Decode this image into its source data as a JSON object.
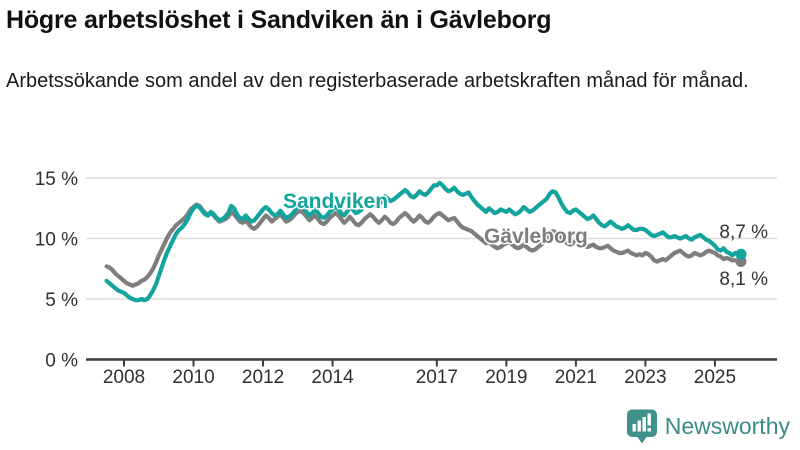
{
  "header": {
    "title": "Högre arbetslöshet i Sandviken än i Gävleborg",
    "subtitle": "Arbetssökande som andel av den registerbaserade arbetskraften månad för månad."
  },
  "branding": {
    "name": "Newsworthy",
    "logo_color": "#3f918a",
    "wordmark_color": "#3a8c86"
  },
  "chart_data": {
    "type": "line",
    "title": "Högre arbetslöshet i Sandviken än i Gävleborg",
    "subtitle": "Arbetssökande som andel av den registerbaserade arbetskraften månad för månad.",
    "unit": "%",
    "frequency": "monthly",
    "x_start": {
      "year": 2007,
      "month": 7
    },
    "x_end": {
      "year": 2025,
      "month": 10
    },
    "ylim": [
      0,
      16
    ],
    "yticks": [
      0,
      5,
      10,
      15
    ],
    "ytick_suffix": " %",
    "xticks": [
      2008,
      2010,
      2012,
      2014,
      2017,
      2019,
      2021,
      2023,
      2025
    ],
    "grid": true,
    "legend_position": "inline-labels",
    "series": [
      {
        "name": "Gävleborg",
        "color": "#7e7e7e",
        "end_label": "8,1 %",
        "end_value": 8.1,
        "label_pos": {
          "x": 484,
          "y": 243
        },
        "end_label_pos": {
          "x": 768,
          "y": 285
        },
        "values": [
          7.7,
          7.6,
          7.4,
          7.1,
          6.9,
          6.7,
          6.5,
          6.3,
          6.2,
          6.1,
          6.2,
          6.3,
          6.5,
          6.6,
          6.8,
          7.1,
          7.5,
          8.0,
          8.6,
          9.1,
          9.6,
          10.1,
          10.5,
          10.8,
          11.1,
          11.3,
          11.5,
          11.7,
          12.0,
          12.4,
          12.6,
          12.8,
          12.7,
          12.4,
          12.1,
          12.0,
          12.1,
          11.9,
          11.6,
          11.4,
          11.5,
          11.6,
          11.8,
          12.2,
          12.0,
          11.7,
          11.4,
          11.3,
          11.5,
          11.2,
          10.9,
          10.8,
          11.0,
          11.3,
          11.6,
          11.9,
          11.7,
          11.4,
          11.6,
          11.8,
          12.0,
          11.7,
          11.4,
          11.5,
          11.7,
          12.0,
          12.2,
          12.3,
          12.1,
          11.8,
          11.5,
          11.7,
          11.9,
          11.6,
          11.3,
          11.2,
          11.4,
          11.7,
          11.9,
          12.1,
          11.9,
          11.6,
          11.3,
          11.5,
          11.8,
          11.5,
          11.2,
          11.1,
          11.3,
          11.6,
          11.8,
          12.0,
          11.8,
          11.5,
          11.3,
          11.5,
          11.8,
          11.6,
          11.3,
          11.2,
          11.4,
          11.7,
          11.9,
          12.1,
          11.9,
          11.6,
          11.4,
          11.6,
          11.9,
          11.7,
          11.4,
          11.3,
          11.5,
          11.8,
          12.0,
          12.1,
          11.9,
          11.7,
          11.5,
          11.6,
          11.7,
          11.4,
          11.1,
          10.9,
          10.8,
          10.7,
          10.6,
          10.4,
          10.2,
          10.0,
          9.8,
          9.6,
          9.7,
          9.5,
          9.3,
          9.2,
          9.3,
          9.5,
          9.6,
          9.7,
          9.5,
          9.3,
          9.2,
          9.3,
          9.5,
          9.3,
          9.1,
          9.0,
          9.1,
          9.3,
          9.5,
          9.7,
          10.0,
          10.4,
          10.6,
          10.5,
          10.3,
          10.0,
          9.8,
          9.6,
          9.5,
          9.6,
          9.8,
          9.7,
          9.5,
          9.4,
          9.3,
          9.4,
          9.5,
          9.3,
          9.2,
          9.2,
          9.3,
          9.4,
          9.2,
          9.0,
          8.9,
          8.8,
          8.8,
          8.9,
          9.0,
          8.8,
          8.7,
          8.6,
          8.7,
          8.6,
          8.8,
          8.7,
          8.5,
          8.2,
          8.1,
          8.2,
          8.3,
          8.2,
          8.4,
          8.6,
          8.8,
          8.9,
          9.0,
          8.8,
          8.6,
          8.5,
          8.6,
          8.8,
          8.7,
          8.6,
          8.7,
          8.9,
          9.0,
          8.9,
          8.8,
          8.6,
          8.5,
          8.3,
          8.4,
          8.3,
          8.2,
          8.2,
          8.1,
          8.1
        ]
      },
      {
        "name": "Sandviken",
        "color": "#12a49d",
        "end_label": "8,7 %",
        "end_value": 8.7,
        "label_pos": {
          "x": 283,
          "y": 208
        },
        "end_label_pos": {
          "x": 768,
          "y": 238
        },
        "values": [
          6.5,
          6.3,
          6.1,
          5.9,
          5.7,
          5.6,
          5.5,
          5.3,
          5.1,
          5.0,
          4.9,
          4.9,
          5.0,
          4.9,
          5.0,
          5.3,
          5.7,
          6.2,
          6.9,
          7.6,
          8.3,
          8.9,
          9.4,
          9.9,
          10.4,
          10.7,
          10.9,
          11.2,
          11.6,
          12.1,
          12.5,
          12.7,
          12.6,
          12.3,
          12.0,
          11.9,
          12.2,
          12.0,
          11.7,
          11.5,
          11.6,
          11.8,
          12.1,
          12.7,
          12.5,
          12.0,
          11.7,
          11.6,
          11.9,
          11.6,
          11.4,
          11.5,
          11.8,
          12.1,
          12.4,
          12.6,
          12.4,
          12.1,
          11.9,
          12.0,
          12.3,
          12.0,
          11.7,
          11.8,
          12.0,
          12.3,
          12.6,
          12.7,
          12.5,
          12.2,
          11.9,
          12.1,
          12.4,
          12.1,
          11.8,
          11.7,
          11.9,
          12.2,
          12.4,
          12.6,
          12.4,
          12.1,
          11.9,
          12.2,
          12.6,
          12.4,
          12.1,
          12.2,
          12.4,
          12.7,
          12.9,
          13.1,
          12.9,
          12.7,
          12.8,
          13.1,
          13.5,
          13.3,
          13.1,
          13.2,
          13.4,
          13.6,
          13.8,
          14.0,
          13.8,
          13.5,
          13.4,
          13.6,
          13.9,
          13.7,
          13.6,
          13.8,
          14.1,
          14.4,
          14.4,
          14.6,
          14.4,
          14.1,
          13.9,
          14.0,
          14.2,
          13.9,
          13.7,
          13.6,
          13.7,
          13.8,
          13.4,
          13.1,
          12.8,
          12.6,
          12.4,
          12.2,
          12.5,
          12.3,
          12.1,
          12.2,
          12.4,
          12.3,
          12.2,
          12.4,
          12.2,
          12.0,
          12.1,
          12.3,
          12.6,
          12.4,
          12.2,
          12.3,
          12.5,
          12.7,
          12.9,
          13.1,
          13.3,
          13.7,
          13.9,
          13.8,
          13.4,
          12.9,
          12.5,
          12.2,
          12.1,
          12.3,
          12.4,
          12.2,
          12.0,
          11.8,
          11.6,
          11.7,
          11.9,
          11.6,
          11.3,
          11.1,
          11.0,
          11.2,
          11.4,
          11.2,
          11.0,
          10.9,
          10.8,
          10.9,
          11.1,
          10.9,
          10.7,
          10.7,
          10.8,
          10.8,
          10.7,
          10.5,
          10.3,
          10.2,
          10.3,
          10.4,
          10.5,
          10.3,
          10.1,
          10.1,
          10.2,
          10.1,
          10.0,
          10.1,
          10.2,
          10.0,
          9.9,
          10.1,
          10.2,
          10.3,
          10.1,
          9.9,
          9.8,
          9.6,
          9.4,
          9.1,
          9.0,
          9.2,
          8.9,
          8.8,
          8.6,
          8.8,
          8.7,
          8.7
        ]
      }
    ]
  }
}
